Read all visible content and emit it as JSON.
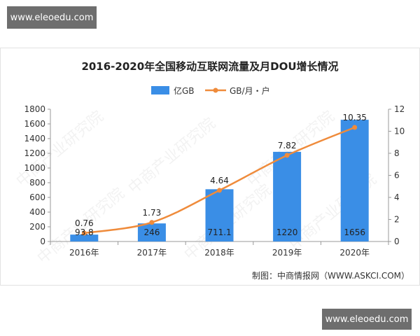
{
  "watermark": {
    "top": "www.eleoedu.com",
    "bottom": "www.eleoedu.com"
  },
  "chart_data": {
    "type": "bar",
    "title": "2016-2020年全国移动互联网流量及月DOU增长情况",
    "categories": [
      "2016年",
      "2017年",
      "2018年",
      "2019年",
      "2020年"
    ],
    "series": [
      {
        "name": "亿GB",
        "type": "bar",
        "axis": "left",
        "color": "#3a8ee6",
        "values": [
          93.8,
          246,
          711.1,
          1220,
          1656
        ],
        "labels": [
          "93.8",
          "246",
          "711.1",
          "1220",
          "1656"
        ]
      },
      {
        "name": "GB/月・户",
        "type": "line",
        "axis": "right",
        "color": "#ef8b3b",
        "values": [
          0.76,
          1.73,
          4.64,
          7.82,
          10.35
        ],
        "labels": [
          "0.76",
          "1.73",
          "4.64",
          "7.82",
          "10.35"
        ]
      }
    ],
    "ylim": [
      0,
      1800
    ],
    "y2lim": [
      0,
      12
    ],
    "yticks": [
      "0",
      "200",
      "400",
      "600",
      "800",
      "1000",
      "1200",
      "1400",
      "1600",
      "1800"
    ],
    "y2ticks": [
      "0",
      "2",
      "4",
      "6",
      "8",
      "10",
      "12"
    ],
    "legend_position": "top-center",
    "grid": false,
    "source": "制图：中商情报网（WWW.ASKCI.COM）",
    "background_watermark": "中商产业研究院"
  }
}
